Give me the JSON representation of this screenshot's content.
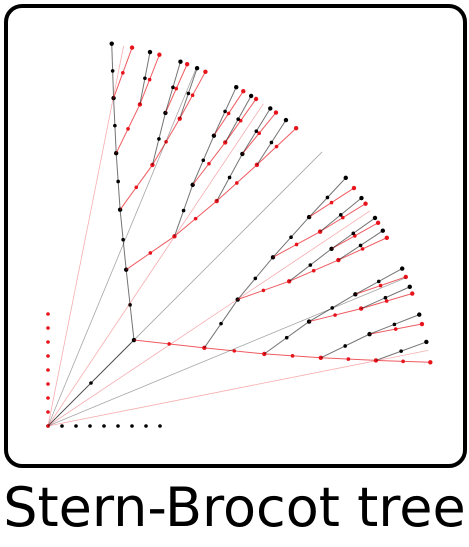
{
  "caption": "Stern-Brocot tree",
  "colors": {
    "black_edges": "#000000",
    "red_edges": "#e8141c",
    "frame": "#000000",
    "background": "#ffffff"
  },
  "icon": "stern-brocot-tree-diagram",
  "tree": {
    "depth": 6,
    "left_branch_color": "red",
    "right_branch_color": "black"
  }
}
